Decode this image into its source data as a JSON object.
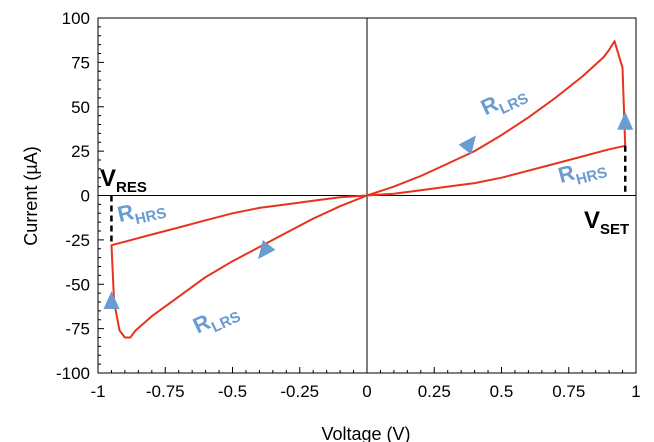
{
  "chart_data": {
    "type": "line",
    "xlabel": "Voltage (V)",
    "ylabel": "Current (µA)",
    "xlim": [
      -1,
      1
    ],
    "ylim": [
      -100,
      100
    ],
    "xticks": [
      -1,
      -0.75,
      -0.5,
      -0.25,
      0,
      0.25,
      0.5,
      0.75,
      1
    ],
    "xtick_labels": [
      "-1",
      "-0.75",
      "-0.5",
      "-0.25",
      "0",
      "0.25",
      "0.5",
      "0.75",
      "1"
    ],
    "yticks": [
      100,
      75,
      50,
      25,
      0,
      -25,
      -50,
      -75,
      -100
    ],
    "ytick_labels": [
      "100",
      "75",
      "50",
      "25",
      "0",
      "-25",
      "-50",
      "-75",
      "-100"
    ],
    "grid": false,
    "line_color": "#e8321c",
    "arrow_color": "#6a9bd1",
    "series": [
      {
        "x": [
          0,
          0.1,
          0.2,
          0.3,
          0.4,
          0.5,
          0.6,
          0.7,
          0.8,
          0.88,
          0.9,
          0.92,
          0.95,
          0.96,
          0.9,
          0.8,
          0.7,
          0.6,
          0.5,
          0.4,
          0.3,
          0.2,
          0.1,
          0,
          -0.1,
          -0.2,
          -0.3,
          -0.4,
          -0.5,
          -0.6,
          -0.7,
          -0.8,
          -0.86,
          -0.88,
          -0.9,
          -0.92,
          -0.94,
          -0.95,
          -0.9,
          -0.8,
          -0.7,
          -0.6,
          -0.5,
          -0.4,
          -0.3,
          -0.2,
          -0.1,
          0
        ],
        "y": [
          0,
          5,
          11,
          18,
          25,
          34,
          44,
          55,
          67,
          78,
          82,
          87,
          72,
          28,
          26,
          22,
          18,
          14,
          10,
          7,
          5,
          3,
          1,
          0,
          -6,
          -13,
          -21,
          -29,
          -37,
          -46,
          -57,
          -68,
          -76,
          -80,
          -80,
          -76,
          -60,
          -28,
          -26,
          -22,
          -18,
          -14,
          -10,
          -7,
          -5,
          -3,
          -1,
          0
        ]
      }
    ],
    "annotations": {
      "v_res": {
        "main": "V",
        "sub": "RES",
        "x": -0.95,
        "y_from": 0,
        "y_to": -28
      },
      "v_set": {
        "main": "V",
        "sub": "SET",
        "x": 0.96,
        "y_from": 28,
        "y_to": 0
      },
      "r_labels": [
        {
          "main": "R",
          "sub": "LRS",
          "x": 0.44,
          "y": 45
        },
        {
          "main": "R",
          "sub": "HRS",
          "x": 0.72,
          "y": 7
        },
        {
          "main": "R",
          "sub": "HRS",
          "x": -0.92,
          "y": -15
        },
        {
          "main": "R",
          "sub": "LRS",
          "x": -0.63,
          "y": -78
        }
      ],
      "arrows": [
        {
          "x": 0.38,
          "y": 29,
          "dir": "up-right"
        },
        {
          "x": 0.96,
          "y": 41,
          "dir": "up"
        },
        {
          "x": -0.38,
          "y": -31,
          "dir": "down-left"
        },
        {
          "x": -0.95,
          "y": -60,
          "dir": "up"
        }
      ]
    }
  }
}
